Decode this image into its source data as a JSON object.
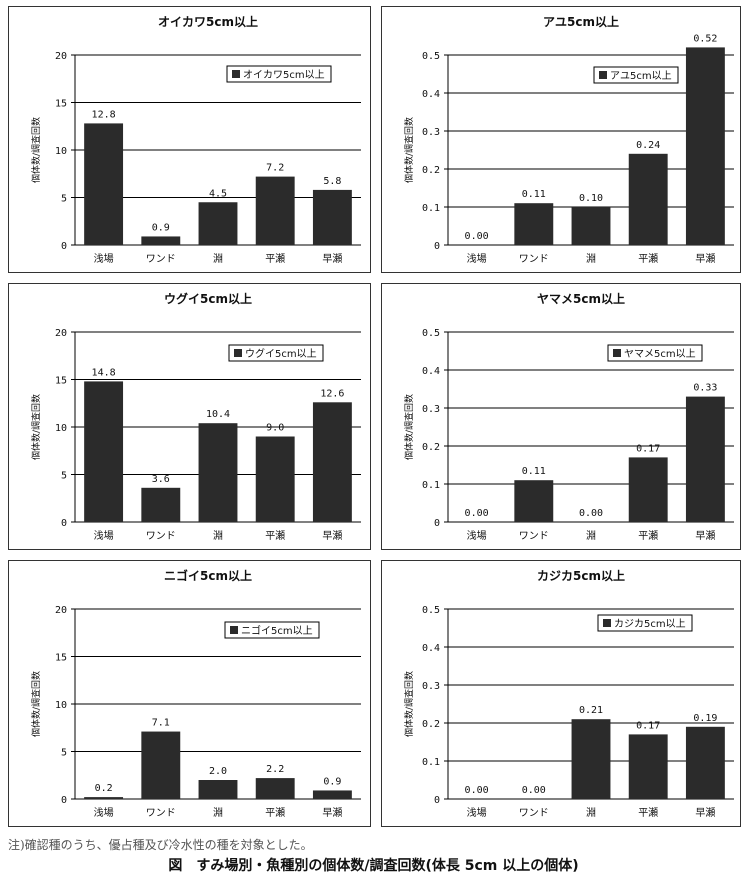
{
  "note": "注)確認種のうち、優占種及び冷水性の種を対象とした。",
  "caption": "図　すみ場別・魚種別の個体数/調査回数(体長 5cm 以上の個体)",
  "chart_data": [
    {
      "type": "bar",
      "title": "オイカワ5cm以上",
      "legend": "オイカワ5cm以上",
      "ylabel": "個体数/調査回数",
      "categories": [
        "浅場",
        "ワンド",
        "淵",
        "平瀬",
        "早瀬"
      ],
      "values": [
        12.8,
        0.9,
        4.5,
        7.2,
        5.8
      ],
      "labels": [
        "12.8",
        "0.9",
        "4.5",
        "7.2",
        "5.8"
      ],
      "ylim": [
        0,
        20
      ],
      "ticks": [
        "0",
        "5",
        "10",
        "15",
        "20"
      ],
      "tickValues": [
        0,
        5,
        10,
        15,
        20
      ],
      "bar_color": "#2b2b2b"
    },
    {
      "type": "bar",
      "title": "アユ5cm以上",
      "legend": "アユ5cm以上",
      "ylabel": "個体数/調査回数",
      "categories": [
        "浅場",
        "ワンド",
        "淵",
        "平瀬",
        "早瀬"
      ],
      "values": [
        0.0,
        0.11,
        0.1,
        0.24,
        0.52
      ],
      "labels": [
        "0.00",
        "0.11",
        "0.10",
        "0.24",
        "0.52"
      ],
      "ylim": [
        0,
        0.5
      ],
      "ticks": [
        "0",
        "0.1",
        "0.2",
        "0.3",
        "0.4",
        "0.5"
      ],
      "tickValues": [
        0,
        0.1,
        0.2,
        0.3,
        0.4,
        0.5
      ],
      "bar_color": "#2b2b2b"
    },
    {
      "type": "bar",
      "title": "ウグイ5cm以上",
      "legend": "ウグイ5cm以上",
      "ylabel": "個体数/調査回数",
      "categories": [
        "浅場",
        "ワンド",
        "淵",
        "平瀬",
        "早瀬"
      ],
      "values": [
        14.8,
        3.6,
        10.4,
        9.0,
        12.6
      ],
      "labels": [
        "14.8",
        "3.6",
        "10.4",
        "9.0",
        "12.6"
      ],
      "ylim": [
        0,
        20
      ],
      "ticks": [
        "0",
        "5",
        "10",
        "15",
        "20"
      ],
      "tickValues": [
        0,
        5,
        10,
        15,
        20
      ],
      "bar_color": "#2b2b2b"
    },
    {
      "type": "bar",
      "title": "ヤマメ5cm以上",
      "legend": "ヤマメ5cm以上",
      "ylabel": "個体数/調査回数",
      "categories": [
        "浅場",
        "ワンド",
        "淵",
        "平瀬",
        "早瀬"
      ],
      "values": [
        0.0,
        0.11,
        0.0,
        0.17,
        0.33
      ],
      "labels": [
        "0.00",
        "0.11",
        "0.00",
        "0.17",
        "0.33"
      ],
      "ylim": [
        0,
        0.5
      ],
      "ticks": [
        "0",
        "0.1",
        "0.2",
        "0.3",
        "0.4",
        "0.5"
      ],
      "tickValues": [
        0,
        0.1,
        0.2,
        0.3,
        0.4,
        0.5
      ],
      "bar_color": "#2b2b2b"
    },
    {
      "type": "bar",
      "title": "ニゴイ5cm以上",
      "legend": "ニゴイ5cm以上",
      "ylabel": "個体数/調査回数",
      "categories": [
        "浅場",
        "ワンド",
        "淵",
        "平瀬",
        "早瀬"
      ],
      "values": [
        0.2,
        7.1,
        2.0,
        2.2,
        0.9
      ],
      "labels": [
        "0.2",
        "7.1",
        "2.0",
        "2.2",
        "0.9"
      ],
      "ylim": [
        0,
        20
      ],
      "ticks": [
        "0",
        "5",
        "10",
        "15",
        "20"
      ],
      "tickValues": [
        0,
        5,
        10,
        15,
        20
      ],
      "bar_color": "#2b2b2b"
    },
    {
      "type": "bar",
      "title": "カジカ5cm以上",
      "legend": "カジカ5cm以上",
      "ylabel": "個体数/調査回数",
      "categories": [
        "浅場",
        "ワンド",
        "淵",
        "平瀬",
        "早瀬"
      ],
      "values": [
        0.0,
        0.0,
        0.21,
        0.17,
        0.19
      ],
      "labels": [
        "0.00",
        "0.00",
        "0.21",
        "0.17",
        "0.19"
      ],
      "ylim": [
        0,
        0.5
      ],
      "ticks": [
        "0",
        "0.1",
        "0.2",
        "0.3",
        "0.4",
        "0.5"
      ],
      "tickValues": [
        0,
        0.1,
        0.2,
        0.3,
        0.4,
        0.5
      ],
      "bar_color": "#2b2b2b"
    }
  ]
}
